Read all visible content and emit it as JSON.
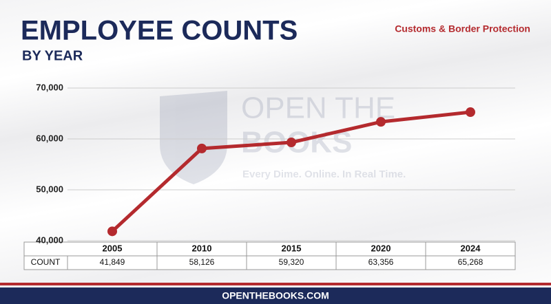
{
  "header": {
    "title": "EMPLOYEE COUNTS",
    "subtitle": "BY YEAR",
    "agency": "Customs & Border Protection"
  },
  "watermark": {
    "name_line1": "OPEN THE",
    "name_line2": "BOOKS",
    "tagline": "Every Dime. Online. In Real Time."
  },
  "chart_data": {
    "type": "line",
    "categories": [
      "2005",
      "2010",
      "2015",
      "2020",
      "2024"
    ],
    "series": [
      {
        "name": "COUNT",
        "color": "#b42a2e",
        "values": [
          41849,
          58126,
          59320,
          63356,
          65268
        ],
        "value_labels": [
          "41,849",
          "58,126",
          "59,320",
          "63,356",
          "65,268"
        ]
      }
    ],
    "ylim": [
      40000,
      70000
    ],
    "yticks": [
      {
        "value": 40000,
        "label": "40,000"
      },
      {
        "value": 50000,
        "label": "50,000"
      },
      {
        "value": 60000,
        "label": "60,000"
      },
      {
        "value": 70000,
        "label": "70,000"
      }
    ],
    "grid": true
  },
  "footer": {
    "site": "OPENTHEBOOKS.COM"
  }
}
